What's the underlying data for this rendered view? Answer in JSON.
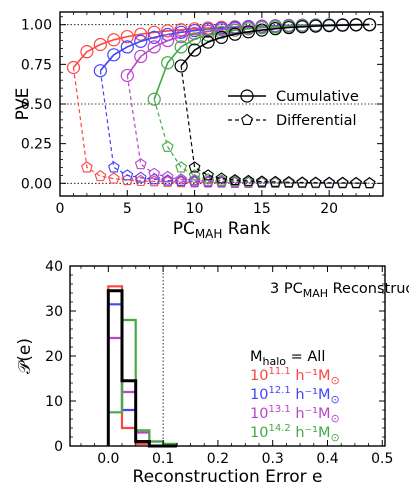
{
  "chart_data": [
    {
      "type": "line",
      "ylabel": "PVE",
      "xlabel": "PC",
      "xlabel_sub": "MAH",
      "xlabel_suffix": " Rank",
      "xlim": [
        0,
        24
      ],
      "ylim": [
        -0.08,
        1.08
      ],
      "xticks": [
        0,
        5,
        10,
        15,
        20
      ],
      "yticks": [
        0.0,
        0.25,
        0.5,
        0.75,
        1.0
      ],
      "ytick_labels": [
        "0.00",
        "0.25",
        "0.50",
        "0.75",
        "1.00"
      ],
      "hlines": [
        0.0,
        0.5,
        1.0
      ],
      "legend": {
        "position": "center-right",
        "entries": [
          "Cumulative",
          "Differential"
        ]
      },
      "series": [
        {
          "color": "#ff4444",
          "cumulative": {
            "x": [
              1,
              2,
              3,
              4,
              5,
              6,
              7,
              8,
              9,
              10,
              11,
              12,
              13,
              14,
              15,
              16,
              17,
              18,
              19,
              20,
              21,
              22,
              23
            ],
            "y": [
              0.73,
              0.83,
              0.875,
              0.905,
              0.925,
              0.94,
              0.952,
              0.961,
              0.968,
              0.974,
              0.979,
              0.983,
              0.986,
              0.989,
              0.991,
              0.993,
              0.995,
              0.996,
              0.997,
              0.998,
              0.999,
              1.0,
              1.0
            ]
          },
          "differential": {
            "x": [
              2,
              3,
              4,
              5,
              6,
              7,
              8,
              9,
              10,
              11,
              12,
              13,
              14,
              15,
              16,
              17,
              18,
              19,
              20,
              21,
              22,
              23
            ],
            "y": [
              0.1,
              0.045,
              0.03,
              0.02,
              0.015,
              0.012,
              0.009,
              0.007,
              0.006,
              0.005,
              0.004,
              0.003,
              0.003,
              0.002,
              0.002,
              0.002,
              0.001,
              0.001,
              0.001,
              0.001,
              0.0,
              0.0
            ]
          }
        },
        {
          "color": "#4444ff",
          "cumulative": {
            "x": [
              3,
              4,
              5,
              6,
              7,
              8,
              9,
              10,
              11,
              12,
              13,
              14,
              15,
              16,
              17,
              18,
              19,
              20,
              21,
              22,
              23
            ],
            "y": [
              0.71,
              0.81,
              0.86,
              0.895,
              0.92,
              0.938,
              0.952,
              0.963,
              0.971,
              0.978,
              0.983,
              0.987,
              0.99,
              0.993,
              0.995,
              0.997,
              0.998,
              0.999,
              0.999,
              1.0,
              1.0
            ]
          },
          "differential": {
            "x": [
              4,
              5,
              6,
              7,
              8,
              9,
              10,
              11,
              12,
              13,
              14,
              15,
              16,
              17,
              18,
              19,
              20,
              21,
              22,
              23
            ],
            "y": [
              0.1,
              0.05,
              0.035,
              0.025,
              0.018,
              0.014,
              0.011,
              0.008,
              0.007,
              0.005,
              0.004,
              0.003,
              0.003,
              0.002,
              0.002,
              0.001,
              0.001,
              0.0,
              0.0,
              0.0
            ]
          }
        },
        {
          "color": "#bb44cc",
          "cumulative": {
            "x": [
              5,
              6,
              7,
              8,
              9,
              10,
              11,
              12,
              13,
              14,
              15,
              16,
              17,
              18,
              19,
              20,
              21,
              22,
              23
            ],
            "y": [
              0.68,
              0.8,
              0.86,
              0.9,
              0.925,
              0.945,
              0.958,
              0.968,
              0.976,
              0.982,
              0.987,
              0.99,
              0.993,
              0.995,
              0.997,
              0.998,
              0.999,
              1.0,
              1.0
            ]
          },
          "differential": {
            "x": [
              6,
              7,
              8,
              9,
              10,
              11,
              12,
              13,
              14,
              15,
              16,
              17,
              18,
              19,
              20,
              21,
              22,
              23
            ],
            "y": [
              0.12,
              0.06,
              0.04,
              0.025,
              0.02,
              0.013,
              0.01,
              0.008,
              0.006,
              0.005,
              0.003,
              0.003,
              0.002,
              0.002,
              0.001,
              0.001,
              0.0,
              0.0
            ]
          }
        },
        {
          "color": "#44aa44",
          "cumulative": {
            "x": [
              7,
              8,
              9,
              10,
              11,
              12,
              13,
              14,
              15,
              16,
              17,
              18,
              19,
              20,
              21,
              22,
              23
            ],
            "y": [
              0.53,
              0.76,
              0.86,
              0.91,
              0.935,
              0.952,
              0.965,
              0.974,
              0.981,
              0.986,
              0.99,
              0.993,
              0.995,
              0.997,
              0.998,
              0.999,
              1.0
            ]
          },
          "differential": {
            "x": [
              8,
              9,
              10,
              11,
              12,
              13,
              14,
              15,
              16,
              17,
              18,
              19,
              20,
              21,
              22,
              23
            ],
            "y": [
              0.23,
              0.1,
              0.05,
              0.025,
              0.017,
              0.013,
              0.009,
              0.007,
              0.005,
              0.004,
              0.003,
              0.002,
              0.002,
              0.001,
              0.001,
              0.0
            ]
          }
        },
        {
          "color": "#000000",
          "cumulative": {
            "x": [
              9,
              10,
              11,
              12,
              13,
              14,
              15,
              16,
              17,
              18,
              19,
              20,
              21,
              22,
              23
            ],
            "y": [
              0.74,
              0.84,
              0.89,
              0.92,
              0.94,
              0.955,
              0.966,
              0.975,
              0.982,
              0.987,
              0.991,
              0.994,
              0.997,
              0.999,
              1.0
            ]
          },
          "differential": {
            "x": [
              10,
              11,
              12,
              13,
              14,
              15,
              16,
              17,
              18,
              19,
              20,
              21,
              22,
              23
            ],
            "y": [
              0.1,
              0.05,
              0.03,
              0.02,
              0.015,
              0.011,
              0.009,
              0.007,
              0.005,
              0.004,
              0.003,
              0.003,
              0.002,
              0.001
            ]
          }
        }
      ]
    },
    {
      "type": "histogram",
      "ylabel": "𝒫(e)",
      "xlabel": "Reconstruction Error e",
      "xlim": [
        -0.07,
        0.505
      ],
      "ylim": [
        0,
        40
      ],
      "xticks": [
        0.0,
        0.1,
        0.2,
        0.3,
        0.4,
        0.5
      ],
      "xtick_labels": [
        "0.0",
        "0.1",
        "0.2",
        "0.3",
        "0.4",
        "0.5"
      ],
      "yticks": [
        0,
        10,
        20,
        30,
        40
      ],
      "vline": 0.1,
      "bin_edges": [
        0.0,
        0.025,
        0.05,
        0.075,
        0.1,
        0.125
      ],
      "annotation": {
        "prefix": "3 PC",
        "sub": "MAH",
        "suffix": " Reconstruction"
      },
      "legend_title": {
        "prefix": "M",
        "sub": "halo",
        "suffix": " = All"
      },
      "series": [
        {
          "label": "M_halo = All",
          "color": "#000000",
          "base": "",
          "sup": "",
          "unit": "",
          "values": [
            34.5,
            14.5,
            1.0,
            0.0,
            0.0
          ]
        },
        {
          "label": "10^11.1 h^-1 M_sun",
          "color": "#ff4444",
          "base": "10",
          "sup": "11.1",
          "unit": " h⁻¹M",
          "values": [
            35.5,
            4.0,
            0.5,
            0.0,
            0.0
          ]
        },
        {
          "label": "10^12.1 h^-1 M_sun",
          "color": "#4444ff",
          "base": "10",
          "sup": "12.1",
          "unit": " h⁻¹M",
          "values": [
            31.5,
            8.0,
            1.0,
            0.0,
            0.0
          ]
        },
        {
          "label": "10^13.1 h^-1 M_sun",
          "color": "#bb44cc",
          "base": "10",
          "sup": "13.1",
          "unit": " h⁻¹M",
          "values": [
            24.0,
            12.0,
            3.0,
            1.0,
            0.0
          ]
        },
        {
          "label": "10^14.2 h^-1 M_sun",
          "color": "#44aa44",
          "base": "10",
          "sup": "14.2",
          "unit": " h⁻¹M",
          "values": [
            7.5,
            28.0,
            3.5,
            1.0,
            0.5
          ]
        }
      ]
    }
  ]
}
